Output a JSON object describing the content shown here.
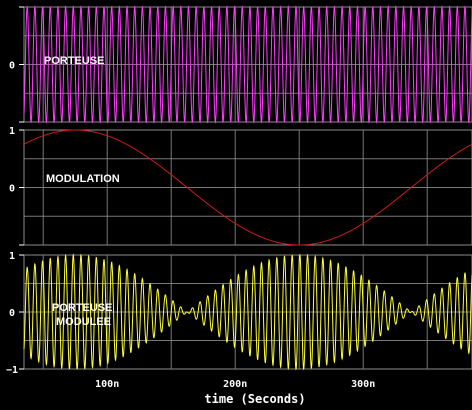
{
  "chart_data": [
    {
      "type": "line",
      "label": "PORTEUSE",
      "color": "#ff3cff",
      "signal": "carrier",
      "carrier_period_ns": 6.0,
      "amplitude": 1.0,
      "ylim": [
        -1,
        1
      ],
      "yticks": [
        {
          "value": 1,
          "text": ""
        },
        {
          "value": 0,
          "text": "0"
        },
        {
          "value": -1,
          "text": ""
        }
      ]
    },
    {
      "type": "line",
      "label": "MODULATION",
      "color": "#d01818",
      "signal": "modulation",
      "modulation_period_ns": 350,
      "peak_time_ns": 75,
      "amplitude": 1.0,
      "ylim": [
        -1,
        1
      ],
      "yticks": [
        {
          "value": 1,
          "text": "1"
        },
        {
          "value": 0,
          "text": "0"
        },
        {
          "value": -1,
          "text": ""
        }
      ]
    },
    {
      "type": "line",
      "label_lines": [
        "PORTEUSE",
        "MODULEE"
      ],
      "color": "#ffff33",
      "signal": "modulated",
      "amplitude": 1.0,
      "ylim": [
        -1,
        1
      ],
      "yticks": [
        {
          "value": 1,
          "text": "1"
        },
        {
          "value": 0,
          "text": "0"
        },
        {
          "value": -1,
          "text": "−1"
        }
      ]
    }
  ],
  "x_axis": {
    "label": "time (Seconds)",
    "range_ns": [
      35,
      385
    ],
    "ticks": [
      {
        "value": 100,
        "text": "100n"
      },
      {
        "value": 200,
        "text": "200n"
      },
      {
        "value": 300,
        "text": "300n"
      }
    ],
    "minor_ticks": [
      50,
      150,
      250,
      350
    ]
  },
  "grid": true,
  "colors": {
    "background": "#000000",
    "grid": "#8c8c8c",
    "text": "#ffffff"
  }
}
